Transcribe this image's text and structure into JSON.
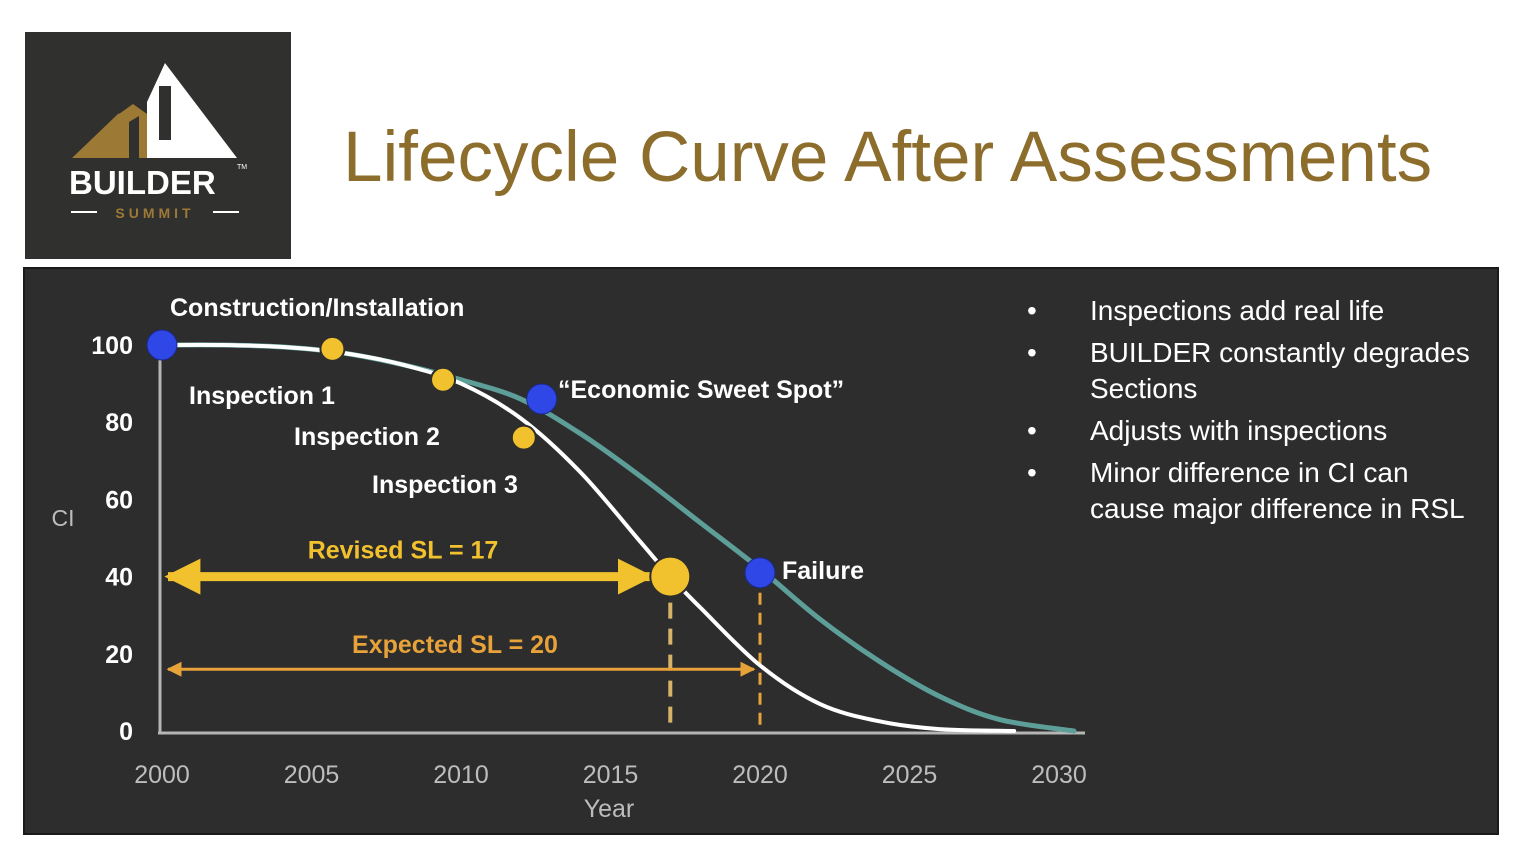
{
  "title": "Lifecycle Curve After Assessments",
  "logo": {
    "name": "BUILDER",
    "trademark": "TM",
    "tagline": "SUMMIT"
  },
  "bullets": [
    "Inspections add real life",
    "BUILDER constantly degrades Sections",
    "Adjusts with inspections",
    "Minor difference in CI can cause major difference in RSL"
  ],
  "colors": {
    "title": "#8c6d2c",
    "panel": "#2d2d2d",
    "expected_curve": "#5e9e98",
    "revised_curve": "#ffffff",
    "inspection": "#f2c12e",
    "revised_arrow": "#f2c12e",
    "expected_arrow": "#e8a23a",
    "milestone": "#2f47e6",
    "logo_gold": "#9c7a35"
  },
  "chart_data": {
    "type": "line",
    "xlabel": "Year",
    "ylabel": "CI",
    "xlim": [
      2000,
      2030
    ],
    "ylim": [
      0,
      100
    ],
    "x_ticks": [
      "2000",
      "2005",
      "2010",
      "2015",
      "2020",
      "2025",
      "2030"
    ],
    "y_ticks": [
      "0",
      "20",
      "40",
      "60",
      "80",
      "100"
    ],
    "grid": false,
    "series": [
      {
        "key": "expected",
        "x": [
          2000,
          2002,
          2004,
          2006,
          2008,
          2010,
          2012,
          2014,
          2016,
          2018,
          2020,
          2022,
          2024,
          2026,
          2028,
          2030.5
        ],
        "y": [
          100,
          100,
          99.5,
          98,
          95,
          91,
          86,
          77,
          66,
          54,
          42,
          29,
          18,
          9,
          3,
          0
        ]
      },
      {
        "key": "revised",
        "x": [
          2000,
          2002,
          2004,
          2006,
          2008,
          2010,
          2012,
          2014,
          2016,
          2017,
          2018,
          2020,
          2022,
          2024,
          2026,
          2028.5
        ],
        "y": [
          100,
          100,
          99.5,
          98,
          95,
          90,
          81,
          67,
          49,
          40,
          32,
          17,
          7,
          2.5,
          0.5,
          0
        ]
      }
    ],
    "milestones": [
      {
        "label": "Construction/Installation",
        "x": 2000,
        "y": 100
      },
      {
        "label": "“Economic Sweet Spot”",
        "x": 2012.7,
        "y": 86
      },
      {
        "label": "Failure",
        "x": 2020,
        "y": 41
      }
    ],
    "inspections": [
      {
        "label": "Inspection 1",
        "x": 2005.7,
        "y": 99
      },
      {
        "label": "Inspection 2",
        "x": 2009.4,
        "y": 91
      },
      {
        "label": "Inspection 3",
        "x": 2012.1,
        "y": 76
      }
    ],
    "revised_end": {
      "x": 2017,
      "y": 40
    },
    "annotations": [
      {
        "key": "revised_sl",
        "label": "Revised SL = 17",
        "from": 2000,
        "to": 2017,
        "y": 40
      },
      {
        "key": "expected_sl",
        "label": "Expected SL = 20",
        "from": 2000,
        "to": 2020,
        "y": 16
      }
    ]
  }
}
